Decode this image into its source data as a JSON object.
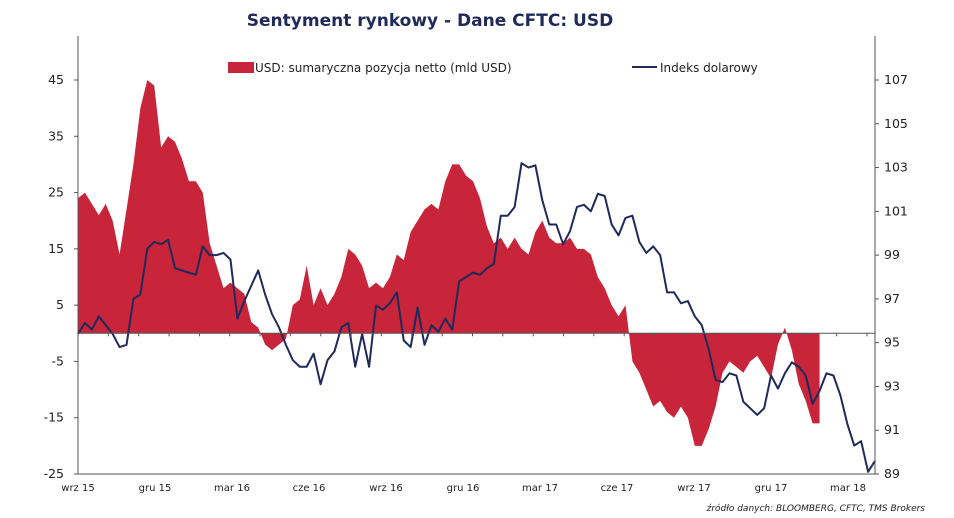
{
  "chart_data": {
    "type": "area+line",
    "title": "Sentyment rynkowy - Dane CFTC:  USD",
    "source": "źródło danych: BLOOMBERG, CFTC, TMS Brokers",
    "x_labels": [
      "wrz 15",
      "gru 15",
      "mar 16",
      "cze 16",
      "wrz 16",
      "gru 16",
      "mar 17",
      "cze 17",
      "wrz 17",
      "gru 17",
      "mar 18"
    ],
    "y_left": {
      "min": -25,
      "max": 45,
      "ticks": [
        45,
        35,
        25,
        15,
        5,
        -5,
        -15,
        -25
      ]
    },
    "y_right": {
      "min": 89,
      "max": 107,
      "ticks": [
        107,
        105,
        103,
        101,
        99,
        97,
        95,
        93,
        91,
        89
      ]
    },
    "legend_position": "top",
    "colors": {
      "area": "#c8243a",
      "line": "#1f2a5a"
    },
    "series": [
      {
        "name": "USD: sumaryczna pozycja netto (mld USD)",
        "axis": "left",
        "type": "area",
        "values": [
          24,
          25,
          23,
          21,
          23,
          20,
          14,
          22,
          30,
          40,
          45,
          44,
          33,
          35,
          34,
          31,
          27,
          27,
          25,
          16,
          12,
          8,
          9,
          8,
          7,
          2,
          1,
          -2,
          -3,
          -2,
          -1,
          5,
          6,
          12,
          5,
          8,
          5,
          7,
          10,
          15,
          14,
          12,
          8,
          9,
          8,
          10,
          14,
          13,
          18,
          20,
          22,
          23,
          22,
          27,
          30,
          30,
          28,
          27,
          24,
          19,
          16,
          17,
          15,
          17,
          15,
          14,
          18,
          20,
          17,
          16,
          16,
          17,
          15,
          15,
          14,
          10,
          8,
          5,
          3,
          5,
          -5,
          -7,
          -10,
          -13,
          -12,
          -14,
          -15,
          -13,
          -15,
          -20,
          -20,
          -17,
          -13,
          -7,
          -5,
          -6,
          -7,
          -5,
          -4,
          -6,
          -8,
          -2,
          1,
          -3,
          -9,
          -12,
          -16,
          -16
        ]
      },
      {
        "name": "Indeks dolarowy",
        "axis": "right",
        "type": "line",
        "values": [
          95.4,
          95.9,
          95.6,
          96.2,
          95.8,
          95.4,
          94.8,
          94.9,
          97.0,
          97.2,
          99.3,
          99.6,
          99.5,
          99.7,
          98.4,
          98.3,
          98.2,
          98.1,
          99.4,
          99.0,
          99.0,
          99.1,
          98.8,
          96.1,
          96.9,
          97.6,
          98.3,
          97.2,
          96.3,
          95.7,
          94.9,
          94.2,
          93.9,
          93.9,
          94.5,
          93.1,
          94.2,
          94.6,
          95.7,
          95.9,
          93.9,
          95.4,
          93.9,
          96.7,
          96.5,
          96.8,
          97.3,
          95.1,
          94.8,
          96.6,
          94.9,
          95.8,
          95.5,
          96.1,
          95.6,
          97.8,
          98.0,
          98.2,
          98.1,
          98.4,
          98.6,
          100.8,
          100.8,
          101.2,
          103.2,
          103.0,
          103.1,
          101.5,
          100.4,
          100.4,
          99.5,
          100.1,
          101.2,
          101.3,
          101.0,
          101.8,
          101.7,
          100.4,
          99.9,
          100.7,
          100.8,
          99.6,
          99.1,
          99.4,
          99.0,
          97.3,
          97.3,
          96.8,
          96.9,
          96.2,
          95.8,
          94.7,
          93.3,
          93.2,
          93.6,
          93.5,
          92.3,
          92.0,
          91.7,
          92.0,
          93.5,
          92.9,
          93.6,
          94.1,
          93.9,
          93.5,
          92.2,
          92.8,
          93.6,
          93.5,
          92.6,
          91.3,
          90.3,
          90.5,
          89.1,
          89.6
        ]
      }
    ]
  }
}
